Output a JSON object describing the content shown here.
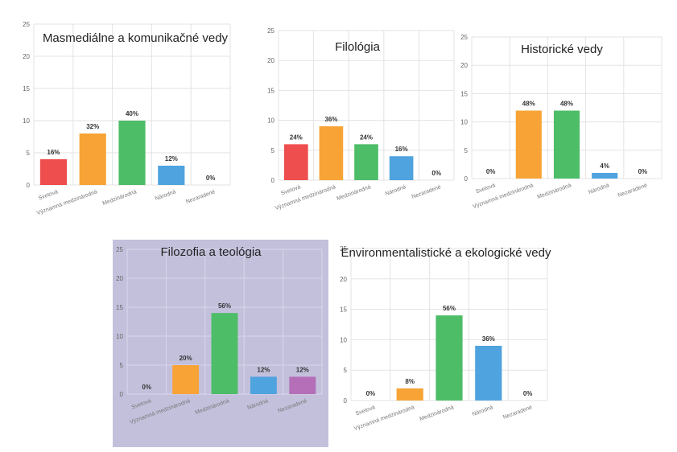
{
  "colors": {
    "Svetová": "#ef4e4e",
    "Významná medzinárodná": "#f7a336",
    "Medzinárodná": "#4dbd67",
    "Národná": "#4fa3de",
    "Nezaradené": "#b46fb8",
    "highlight_bg": "#c3c0dc"
  },
  "chart_data": [
    {
      "type": "bar",
      "title": "Masmediálne a komunikačné vedy",
      "categories": [
        "Svetová",
        "Významná medzinárodná",
        "Medzinárodná",
        "Národná",
        "Nezaradené"
      ],
      "values": [
        4,
        8,
        10,
        3,
        0
      ],
      "data_labels": [
        "16%",
        "32%",
        "40%",
        "12%",
        "0%"
      ],
      "yticks": [
        0,
        5,
        10,
        15,
        20,
        25
      ],
      "ylim": [
        0,
        25
      ],
      "grid": true,
      "highlight": false
    },
    {
      "type": "bar",
      "title": "Filológia",
      "categories": [
        "Svetová",
        "Významná medzinárodná",
        "Medzinárodná",
        "Národná",
        "Nezaradené"
      ],
      "values": [
        6,
        9,
        6,
        4,
        0
      ],
      "data_labels": [
        "24%",
        "36%",
        "24%",
        "16%",
        "0%"
      ],
      "yticks": [
        0,
        5,
        10,
        15,
        20,
        25
      ],
      "ylim": [
        0,
        25
      ],
      "grid": true,
      "highlight": false
    },
    {
      "type": "bar",
      "title": "Historické vedy",
      "categories": [
        "Svetová",
        "Významná medzinárodná",
        "Medzinárodná",
        "Národná",
        "Nezaradené"
      ],
      "values": [
        0,
        12,
        12,
        1,
        0
      ],
      "data_labels": [
        "0%",
        "48%",
        "48%",
        "4%",
        "0%"
      ],
      "yticks": [
        0,
        5,
        10,
        15,
        20,
        25
      ],
      "ylim": [
        0,
        25
      ],
      "grid": true,
      "highlight": false
    },
    {
      "type": "bar",
      "title": "Filozofia a teológia",
      "categories": [
        "Svetová",
        "Významná medzinárodná",
        "Medzinárodná",
        "Národná",
        "Nezaradené"
      ],
      "values": [
        0,
        5,
        14,
        3,
        3
      ],
      "data_labels": [
        "0%",
        "20%",
        "56%",
        "12%",
        "12%"
      ],
      "yticks": [
        0,
        5,
        10,
        15,
        20,
        25
      ],
      "ylim": [
        0,
        25
      ],
      "grid": true,
      "highlight": true
    },
    {
      "type": "bar",
      "title": "Environmentalistické a ekologické vedy",
      "categories": [
        "Svetová",
        "Významná medzinárodná",
        "Medzinárodná",
        "Národná",
        "Nezaradené"
      ],
      "values": [
        0,
        2,
        14,
        9,
        0
      ],
      "data_labels": [
        "0%",
        "8%",
        "56%",
        "36%",
        "0%"
      ],
      "yticks": [
        0,
        5,
        10,
        15,
        20,
        25
      ],
      "ylim": [
        0,
        25
      ],
      "grid": true,
      "highlight": false
    }
  ]
}
